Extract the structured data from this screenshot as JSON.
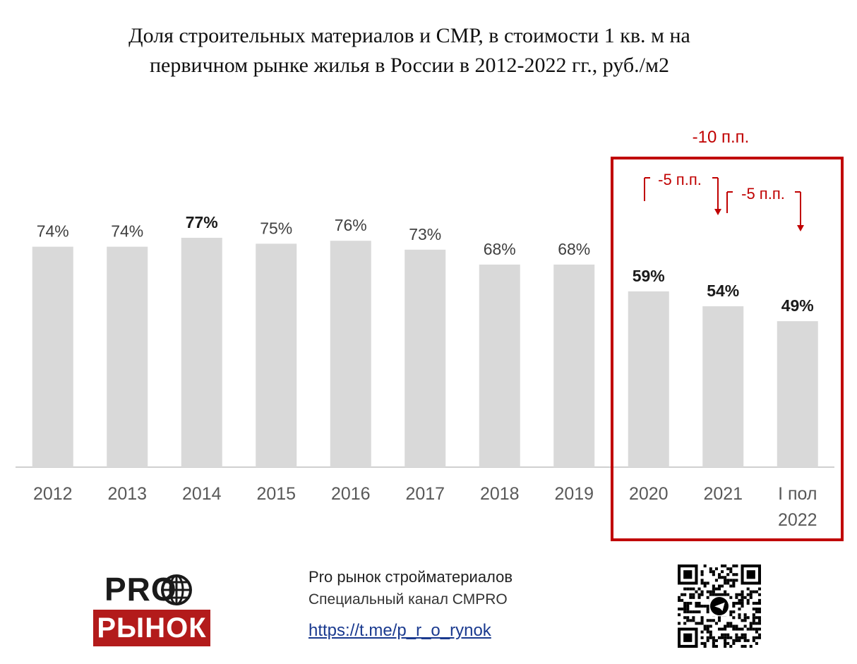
{
  "title_line1": "Доля строительных материалов и СМР, в стоимости 1 кв. м на",
  "title_line2": "первичном рынке жилья в России в 2012-2022 гг., руб./м2",
  "chart_data": {
    "type": "bar",
    "categories": [
      "2012",
      "2013",
      "2014",
      "2015",
      "2016",
      "2017",
      "2018",
      "2019",
      "2020",
      "2021",
      "I пол|2022"
    ],
    "values": [
      74,
      74,
      77,
      75,
      76,
      73,
      68,
      68,
      59,
      54,
      49
    ],
    "value_labels": [
      "74%",
      "74%",
      "77%",
      "75%",
      "76%",
      "73%",
      "68%",
      "68%",
      "59%",
      "54%",
      "49%"
    ],
    "bold_labels": [
      false,
      false,
      true,
      false,
      false,
      false,
      false,
      false,
      true,
      true,
      true
    ],
    "unit": "%",
    "grid": false,
    "highlight_range": [
      "2020",
      "I пол|2022"
    ],
    "annotations": [
      {
        "text": "-10 п.п.",
        "from": "2020",
        "to": "I пол|2022"
      },
      {
        "text": "-5 п.п.",
        "from": "2020",
        "to": "2021"
      },
      {
        "text": "-5 п.п.",
        "from": "2021",
        "to": "I пол|2022"
      }
    ],
    "colors": {
      "bar": "#d9d9d9",
      "highlight": "#c00000",
      "axis_text": "#595959",
      "label": "#404040"
    }
  },
  "footer": {
    "channel_name": "Pro рынок стройматериалов",
    "channel_desc": "Специальный канал СМPRO",
    "link": "https://t.me/p_r_o_rynok"
  },
  "logo": {
    "top": "PRO",
    "bottom": "РЫНОК",
    "icon": "globe-icon"
  },
  "qr_icon": "qr-code-icon"
}
